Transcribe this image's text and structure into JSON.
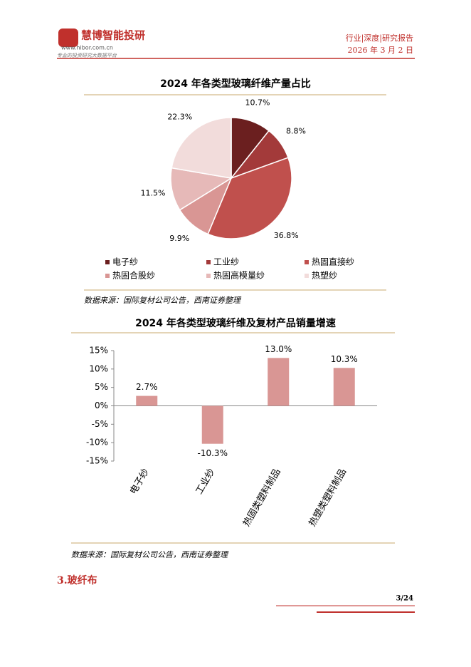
{
  "header": {
    "logo": "慧博智能投研",
    "site": "www.hibor.com.cn",
    "slogan": "专业的投资研究大数据平台",
    "report_type": "行业|深度|研究报告",
    "date": "2026 年 3 月 2 日"
  },
  "chart_data": [
    {
      "type": "pie",
      "title": "2024 年各类型玻璃纤维产量占比",
      "categories": [
        "电子纱",
        "工业纱",
        "热固直接纱",
        "热固合股纱",
        "热固高模量纱",
        "热塑纱"
      ],
      "values": [
        10.7,
        8.8,
        36.8,
        9.9,
        11.5,
        22.3
      ],
      "value_labels": [
        "10.7%",
        "8.8%",
        "36.8%",
        "9.9%",
        "11.5%",
        "22.3%"
      ],
      "colors": [
        "#6b1f1f",
        "#a33a3a",
        "#c0504d",
        "#d99694",
        "#e6b9b8",
        "#f2dcdb"
      ],
      "source": "数据来源：国际复材公司公告，西南证券整理"
    },
    {
      "type": "bar",
      "title": "2024 年各类型玻璃纤维及复材产品销量增速",
      "categories": [
        "电子纱",
        "工业纱",
        "热固类塑料制品",
        "热塑类塑料制品"
      ],
      "values": [
        2.7,
        -10.3,
        13.0,
        10.3
      ],
      "value_labels": [
        "2.7%",
        "-10.3%",
        "13.0%",
        "10.3%"
      ],
      "color": "#d99694",
      "ylim": [
        -15,
        15
      ],
      "yticks": [
        {
          "value": 15,
          "label": "15%"
        },
        {
          "value": 10,
          "label": "10%"
        },
        {
          "value": 5,
          "label": "5%"
        },
        {
          "value": 0,
          "label": "0%"
        },
        {
          "value": -5,
          "label": "-5%"
        },
        {
          "value": -10,
          "label": "-10%"
        },
        {
          "value": -15,
          "label": "-15%"
        }
      ],
      "source": "数据来源：国际复材公司公告，西南证券整理"
    }
  ],
  "section": "3.玻纤布",
  "page": "3/24"
}
